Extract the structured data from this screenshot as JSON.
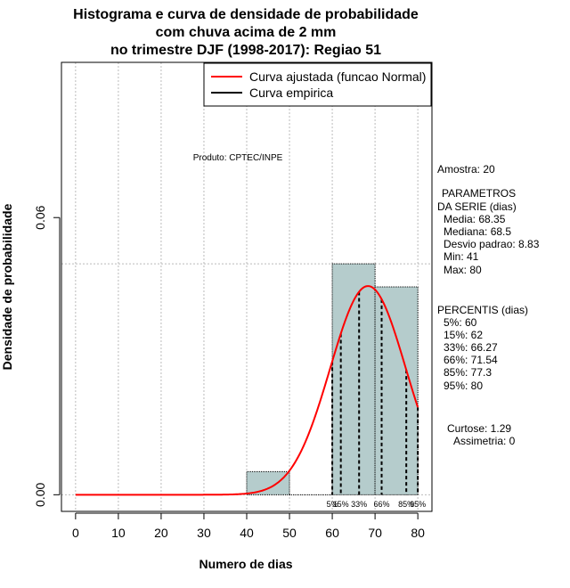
{
  "chart_data": {
    "type": "bar",
    "title_lines": [
      "Histograma e curva de densidade de probabilidade",
      "com chuva acima de 2 mm",
      "no trimestre DJF (1998-2017): Regiao 51"
    ],
    "xlabel": "Numero de dias",
    "ylabel": "Densidade de probabilidade",
    "xlim": [
      -3.3,
      83.3
    ],
    "ylim": [
      -0.0036,
      0.0936
    ],
    "x_ticks": [
      0,
      10,
      20,
      30,
      40,
      50,
      60,
      70,
      80
    ],
    "y_ticks": [
      0.0,
      0.06
    ],
    "y_tick_labels": [
      "0.00",
      "0.06"
    ],
    "grid": true,
    "histogram": {
      "breaks": [
        40,
        50,
        60,
        70,
        80
      ],
      "density": [
        0.005,
        0.0,
        0.05,
        0.045
      ],
      "fill": "#b5cccc"
    },
    "fitted_curve": {
      "name": "Curva ajustada (funcao Normal)",
      "mean": 68.35,
      "sd": 8.83,
      "x_from": 0,
      "x_to": 80,
      "color": "#ff0000"
    },
    "empirical_curve": {
      "name": "Curva empirica",
      "color": "#000000"
    },
    "legend_placement": "top-right",
    "percentile_lines": [
      {
        "label": "5%",
        "x": 60
      },
      {
        "label": "15%",
        "x": 62
      },
      {
        "label": "33%",
        "x": 66.27
      },
      {
        "label": "66%",
        "x": 71.54
      },
      {
        "label": "85%",
        "x": 77.3
      },
      {
        "label": "95%",
        "x": 80
      }
    ],
    "annotation": "Produto: CPTEC/INPE",
    "side_text": {
      "amostra": "Amostra: 20",
      "param_title_1": "PARAMETROS",
      "param_title_2": "DA SERIE (dias)",
      "media": "Media: 68.35",
      "mediana": "Mediana: 68.5",
      "desvio": "Desvio padrao: 8.83",
      "min": "Min: 41",
      "max": "Max: 80",
      "pct_title": "PERCENTIS (dias)",
      "p5": "5%: 60",
      "p15": "15%: 62",
      "p33": "33%: 66.27",
      "p66": "66%: 71.54",
      "p85": "85%: 77.3",
      "p95": "95%: 80",
      "curtose": "Curtose: 1.29",
      "assimetria": "Assimetria: 0"
    }
  }
}
